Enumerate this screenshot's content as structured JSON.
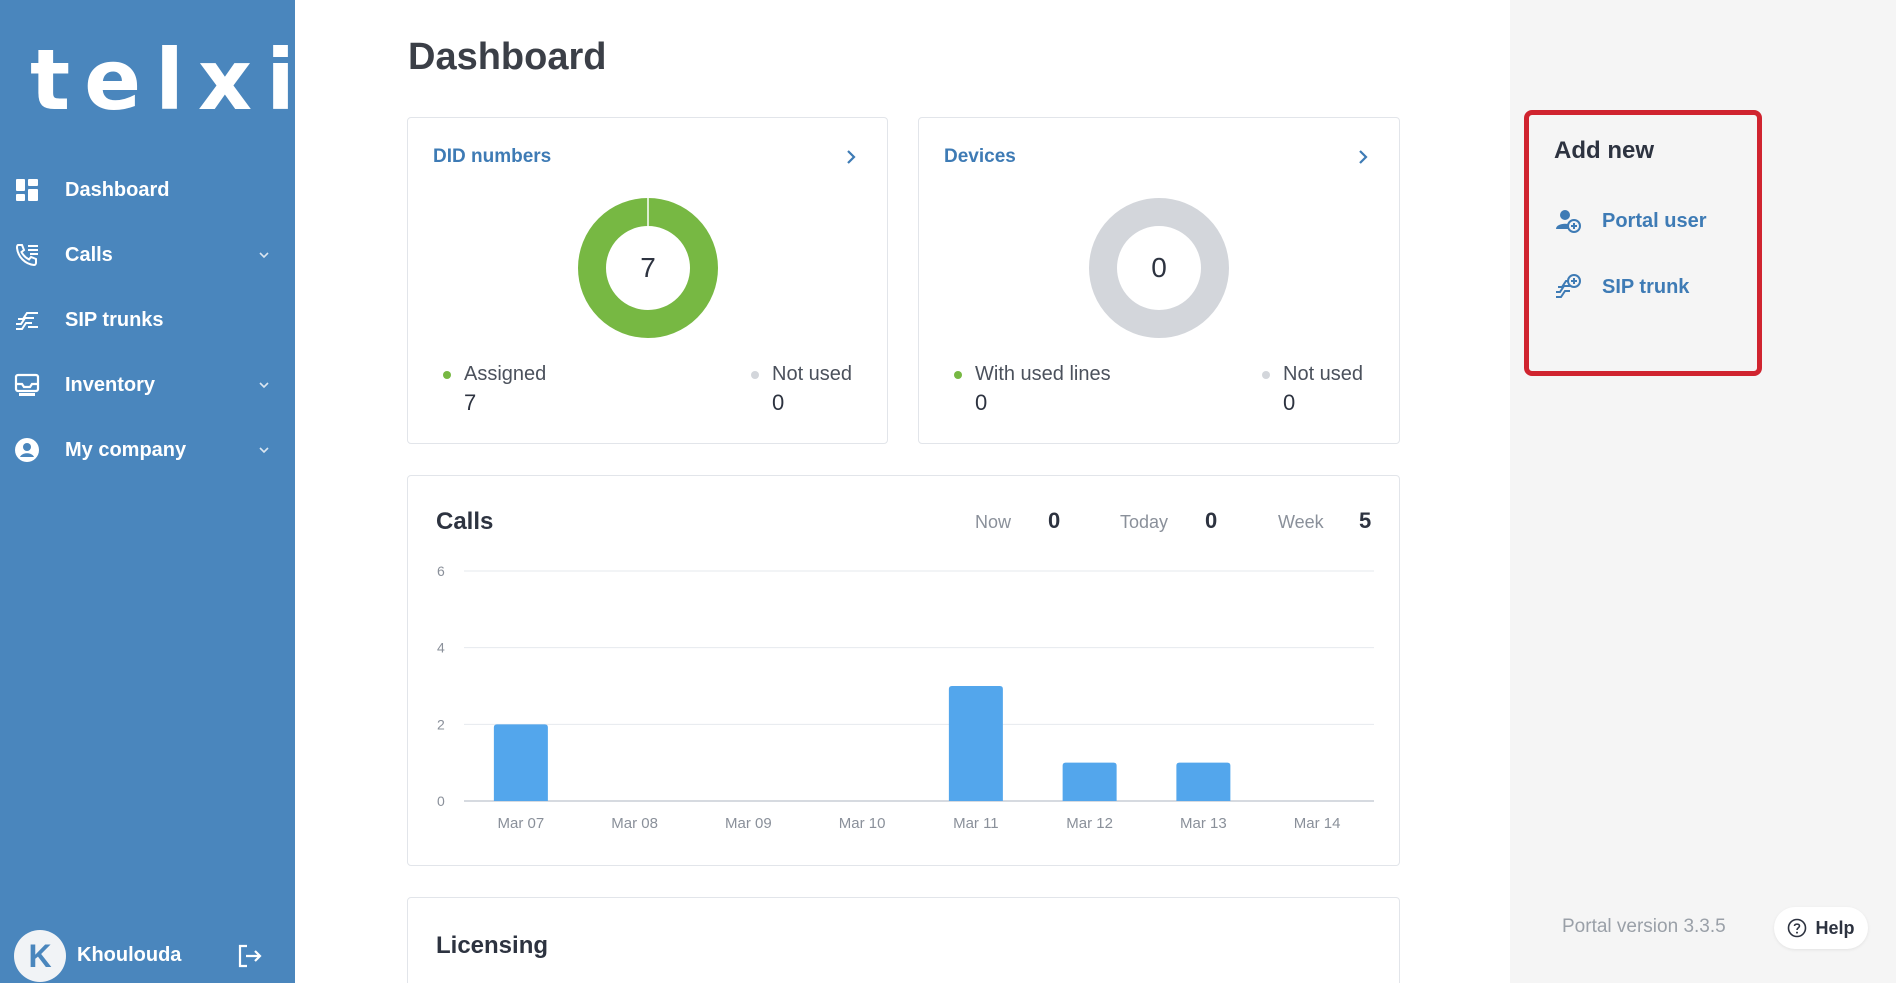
{
  "brand": {
    "logo": "telxi",
    "accent": "#4a86bd",
    "highlight": "#d0242f"
  },
  "sidebar": {
    "items": [
      {
        "label": "Dashboard",
        "icon": "dashboard-icon"
      },
      {
        "label": "Calls",
        "icon": "phone-list-icon",
        "expandable": true
      },
      {
        "label": "SIP trunks",
        "icon": "sip-trunk-icon"
      },
      {
        "label": "Inventory",
        "icon": "inventory-icon",
        "expandable": true
      },
      {
        "label": "My company",
        "icon": "company-icon",
        "expandable": true
      }
    ],
    "user": {
      "initial": "K",
      "name": "Khoulouda"
    }
  },
  "main": {
    "title": "Dashboard",
    "did_card": {
      "title": "DID numbers",
      "center_value": "7",
      "legend": [
        {
          "label": "Assigned",
          "value": "7",
          "color": "#77b843"
        },
        {
          "label": "Not used",
          "value": "0",
          "color": "#d3d6db"
        }
      ]
    },
    "devices_card": {
      "title": "Devices",
      "center_value": "0",
      "legend": [
        {
          "label": "With used lines",
          "value": "0",
          "color": "#77b843"
        },
        {
          "label": "Not used",
          "value": "0",
          "color": "#d3d6db"
        }
      ]
    },
    "calls_card": {
      "title": "Calls",
      "stats": {
        "now_label": "Now",
        "now_value": "0",
        "today_label": "Today",
        "today_value": "0",
        "week_label": "Week",
        "week_value": "5"
      }
    },
    "licensing_card": {
      "title": "Licensing"
    }
  },
  "chart_data": {
    "type": "bar",
    "categories": [
      "Mar 07",
      "Mar 08",
      "Mar 09",
      "Mar 10",
      "Mar 11",
      "Mar 12",
      "Mar 13",
      "Mar 14"
    ],
    "values": [
      2,
      0,
      0,
      0,
      3,
      1,
      1,
      0
    ],
    "yticks": [
      "0",
      "2",
      "4",
      "6"
    ],
    "ylim": [
      0,
      6
    ],
    "grid": true,
    "bar_color": "#53a6ec"
  },
  "right_panel": {
    "add_new": {
      "title": "Add new",
      "items": [
        {
          "label": "Portal user",
          "icon": "add-user-icon"
        },
        {
          "label": "SIP trunk",
          "icon": "add-sip-trunk-icon"
        }
      ]
    },
    "version": "Portal version 3.3.5",
    "help_label": "Help"
  }
}
